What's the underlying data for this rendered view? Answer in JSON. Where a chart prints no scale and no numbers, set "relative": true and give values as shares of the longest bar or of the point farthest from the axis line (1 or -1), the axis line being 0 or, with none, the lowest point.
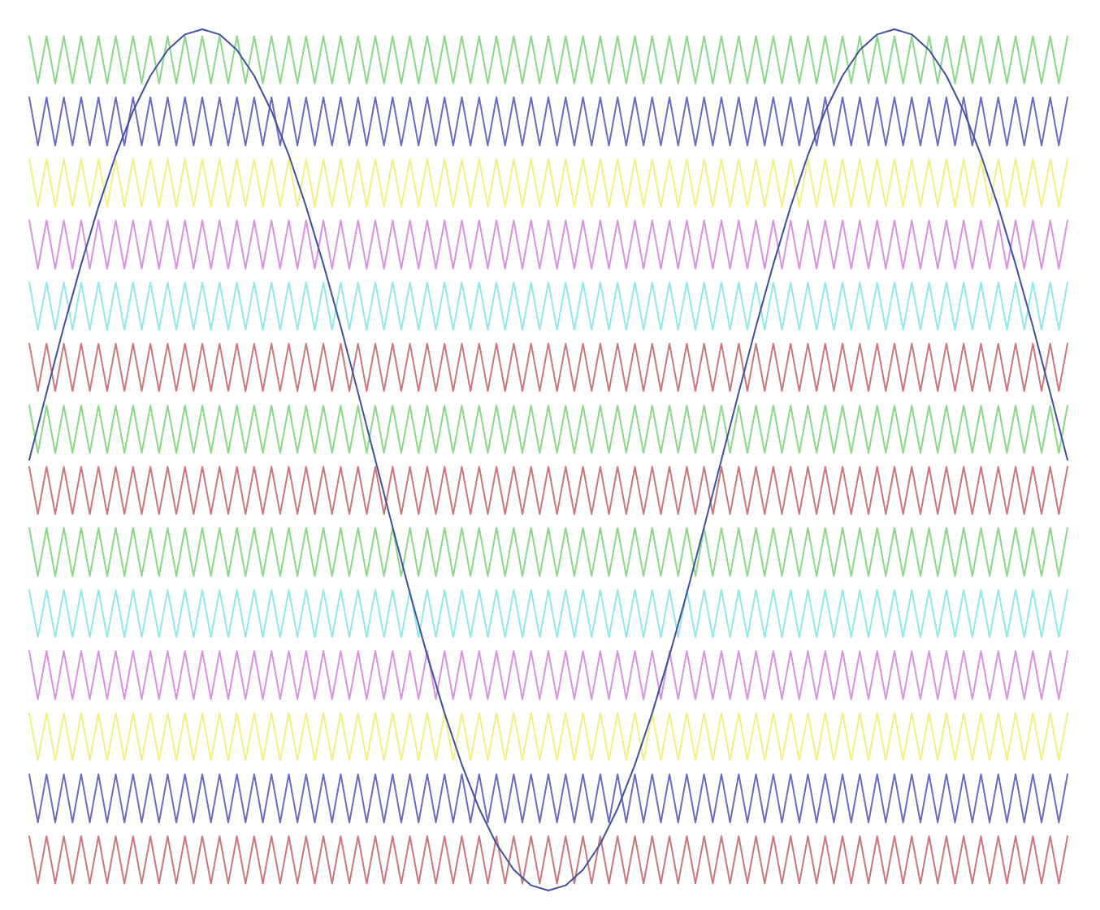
{
  "chart_data": {
    "type": "line",
    "relative": true,
    "tick_labels": false,
    "categories": [
      null,
      null,
      null,
      null,
      null,
      null,
      null,
      null,
      null,
      null,
      null,
      null,
      null,
      null,
      null,
      null,
      null,
      null,
      null,
      null,
      null,
      null,
      null,
      null,
      null,
      null,
      null,
      null,
      null,
      null,
      null,
      null,
      null,
      null,
      null,
      null,
      null,
      null,
      null,
      null,
      null,
      null,
      null,
      null,
      null,
      null,
      null,
      null,
      null,
      null,
      null,
      null,
      null,
      null,
      null,
      null,
      null,
      null,
      null,
      null,
      null,
      null,
      null,
      null,
      null,
      null,
      null,
      null,
      null,
      null,
      null,
      null,
      null,
      null,
      null,
      null,
      null,
      null,
      null,
      null,
      null,
      null,
      null,
      null,
      null,
      null,
      null,
      null,
      null,
      null,
      null,
      null,
      null,
      null,
      null,
      null,
      null,
      null,
      null,
      null,
      null,
      null,
      null,
      null,
      null,
      null,
      null,
      null,
      null,
      null,
      null,
      null,
      null,
      null,
      null,
      null,
      null,
      null,
      null,
      null,
      null
    ],
    "series": [
      {
        "color": "#88d888",
        "values": [
          0.992,
          0.937,
          0.992,
          0.937,
          0.992,
          0.937,
          0.992,
          0.937,
          0.992,
          0.937,
          0.992,
          0.937,
          0.992,
          0.937,
          0.992,
          0.937,
          0.992,
          0.937,
          0.992,
          0.937,
          0.992,
          0.937,
          0.992,
          0.937,
          0.992,
          0.937,
          0.992,
          0.937,
          0.992,
          0.937,
          0.992,
          0.937,
          0.992,
          0.937,
          0.992,
          0.937,
          0.992,
          0.937,
          0.992,
          0.937,
          0.992,
          0.937,
          0.992,
          0.937,
          0.992,
          0.937,
          0.992,
          0.937,
          0.992,
          0.937,
          0.992,
          0.937,
          0.992,
          0.937,
          0.992,
          0.937,
          0.992,
          0.937,
          0.992,
          0.937,
          0.992,
          0.937,
          0.992,
          0.937,
          0.992,
          0.937,
          0.992,
          0.937,
          0.992,
          0.937,
          0.992,
          0.937,
          0.992,
          0.937,
          0.992,
          0.937,
          0.992,
          0.937,
          0.992,
          0.937,
          0.992,
          0.937,
          0.992,
          0.937,
          0.992,
          0.937,
          0.992,
          0.937,
          0.992,
          0.937,
          0.992,
          0.937,
          0.992,
          0.937,
          0.992,
          0.937,
          0.992,
          0.937,
          0.992,
          0.937,
          0.992,
          0.937,
          0.992,
          0.937,
          0.992,
          0.937,
          0.992,
          0.937,
          0.992,
          0.937,
          0.992,
          0.937,
          0.992,
          0.937,
          0.992,
          0.937,
          0.992,
          0.937,
          0.992,
          0.937,
          0.992
        ]
      },
      {
        "color": "#6a6ac0",
        "values": [
          0.921,
          0.865,
          0.921,
          0.865,
          0.921,
          0.865,
          0.921,
          0.865,
          0.921,
          0.865,
          0.921,
          0.865,
          0.921,
          0.865,
          0.921,
          0.865,
          0.921,
          0.865,
          0.921,
          0.865,
          0.921,
          0.865,
          0.921,
          0.865,
          0.921,
          0.865,
          0.921,
          0.865,
          0.921,
          0.865,
          0.921,
          0.865,
          0.921,
          0.865,
          0.921,
          0.865,
          0.921,
          0.865,
          0.921,
          0.865,
          0.921,
          0.865,
          0.921,
          0.865,
          0.921,
          0.865,
          0.921,
          0.865,
          0.921,
          0.865,
          0.921,
          0.865,
          0.921,
          0.865,
          0.921,
          0.865,
          0.921,
          0.865,
          0.921,
          0.865,
          0.921,
          0.865,
          0.921,
          0.865,
          0.921,
          0.865,
          0.921,
          0.865,
          0.921,
          0.865,
          0.921,
          0.865,
          0.921,
          0.865,
          0.921,
          0.865,
          0.921,
          0.865,
          0.921,
          0.865,
          0.921,
          0.865,
          0.921,
          0.865,
          0.921,
          0.865,
          0.921,
          0.865,
          0.921,
          0.865,
          0.921,
          0.865,
          0.921,
          0.865,
          0.921,
          0.865,
          0.921,
          0.865,
          0.921,
          0.865,
          0.921,
          0.865,
          0.921,
          0.865,
          0.921,
          0.865,
          0.921,
          0.865,
          0.921,
          0.865,
          0.921,
          0.865,
          0.921,
          0.865,
          0.921,
          0.865,
          0.921,
          0.865,
          0.921,
          0.865,
          0.921
        ]
      },
      {
        "color": "#f0f080",
        "values": [
          0.849,
          0.794,
          0.849,
          0.794,
          0.849,
          0.794,
          0.849,
          0.794,
          0.849,
          0.794,
          0.849,
          0.794,
          0.849,
          0.794,
          0.849,
          0.794,
          0.849,
          0.794,
          0.849,
          0.794,
          0.849,
          0.794,
          0.849,
          0.794,
          0.849,
          0.794,
          0.849,
          0.794,
          0.849,
          0.794,
          0.849,
          0.794,
          0.849,
          0.794,
          0.849,
          0.794,
          0.849,
          0.794,
          0.849,
          0.794,
          0.849,
          0.794,
          0.849,
          0.794,
          0.849,
          0.794,
          0.849,
          0.794,
          0.849,
          0.794,
          0.849,
          0.794,
          0.849,
          0.794,
          0.849,
          0.794,
          0.849,
          0.794,
          0.849,
          0.794,
          0.849,
          0.794,
          0.849,
          0.794,
          0.849,
          0.794,
          0.849,
          0.794,
          0.849,
          0.794,
          0.849,
          0.794,
          0.849,
          0.794,
          0.849,
          0.794,
          0.849,
          0.794,
          0.849,
          0.794,
          0.849,
          0.794,
          0.849,
          0.794,
          0.849,
          0.794,
          0.849,
          0.794,
          0.849,
          0.794,
          0.849,
          0.794,
          0.849,
          0.794,
          0.849,
          0.794,
          0.849,
          0.794,
          0.849,
          0.794,
          0.849,
          0.794,
          0.849,
          0.794,
          0.849,
          0.794,
          0.849,
          0.794,
          0.849,
          0.794,
          0.849,
          0.794,
          0.849,
          0.794,
          0.849,
          0.794,
          0.849,
          0.794,
          0.849,
          0.794,
          0.849
        ]
      },
      {
        "color": "#d890e0",
        "values": [
          0.778,
          0.722,
          0.778,
          0.722,
          0.778,
          0.722,
          0.778,
          0.722,
          0.778,
          0.722,
          0.778,
          0.722,
          0.778,
          0.722,
          0.778,
          0.722,
          0.778,
          0.722,
          0.778,
          0.722,
          0.778,
          0.722,
          0.778,
          0.722,
          0.778,
          0.722,
          0.778,
          0.722,
          0.778,
          0.722,
          0.778,
          0.722,
          0.778,
          0.722,
          0.778,
          0.722,
          0.778,
          0.722,
          0.778,
          0.722,
          0.778,
          0.722,
          0.778,
          0.722,
          0.778,
          0.722,
          0.778,
          0.722,
          0.778,
          0.722,
          0.778,
          0.722,
          0.778,
          0.722,
          0.778,
          0.722,
          0.778,
          0.722,
          0.778,
          0.722,
          0.778,
          0.722,
          0.778,
          0.722,
          0.778,
          0.722,
          0.778,
          0.722,
          0.778,
          0.722,
          0.778,
          0.722,
          0.778,
          0.722,
          0.778,
          0.722,
          0.778,
          0.722,
          0.778,
          0.722,
          0.778,
          0.722,
          0.778,
          0.722,
          0.778,
          0.722,
          0.778,
          0.722,
          0.778,
          0.722,
          0.778,
          0.722,
          0.778,
          0.722,
          0.778,
          0.722,
          0.778,
          0.722,
          0.778,
          0.722,
          0.778,
          0.722,
          0.778,
          0.722,
          0.778,
          0.722,
          0.778,
          0.722,
          0.778,
          0.722,
          0.778,
          0.722,
          0.778,
          0.722,
          0.778,
          0.722,
          0.778,
          0.722,
          0.778,
          0.722,
          0.778
        ]
      },
      {
        "color": "#90e8e8",
        "values": [
          0.706,
          0.651,
          0.706,
          0.651,
          0.706,
          0.651,
          0.706,
          0.651,
          0.706,
          0.651,
          0.706,
          0.651,
          0.706,
          0.651,
          0.706,
          0.651,
          0.706,
          0.651,
          0.706,
          0.651,
          0.706,
          0.651,
          0.706,
          0.651,
          0.706,
          0.651,
          0.706,
          0.651,
          0.706,
          0.651,
          0.706,
          0.651,
          0.706,
          0.651,
          0.706,
          0.651,
          0.706,
          0.651,
          0.706,
          0.651,
          0.706,
          0.651,
          0.706,
          0.651,
          0.706,
          0.651,
          0.706,
          0.651,
          0.706,
          0.651,
          0.706,
          0.651,
          0.706,
          0.651,
          0.706,
          0.651,
          0.706,
          0.651,
          0.706,
          0.651,
          0.706,
          0.651,
          0.706,
          0.651,
          0.706,
          0.651,
          0.706,
          0.651,
          0.706,
          0.651,
          0.706,
          0.651,
          0.706,
          0.651,
          0.706,
          0.651,
          0.706,
          0.651,
          0.706,
          0.651,
          0.706,
          0.651,
          0.706,
          0.651,
          0.706,
          0.651,
          0.706,
          0.651,
          0.706,
          0.651,
          0.706,
          0.651,
          0.706,
          0.651,
          0.706,
          0.651,
          0.706,
          0.651,
          0.706,
          0.651,
          0.706,
          0.651,
          0.706,
          0.651,
          0.706,
          0.651,
          0.706,
          0.651,
          0.706,
          0.651,
          0.706,
          0.651,
          0.706,
          0.651,
          0.706,
          0.651,
          0.706,
          0.651,
          0.706,
          0.651,
          0.706
        ]
      },
      {
        "color": "#c87878",
        "values": [
          0.635,
          0.58,
          0.635,
          0.58,
          0.635,
          0.58,
          0.635,
          0.58,
          0.635,
          0.58,
          0.635,
          0.58,
          0.635,
          0.58,
          0.635,
          0.58,
          0.635,
          0.58,
          0.635,
          0.58,
          0.635,
          0.58,
          0.635,
          0.58,
          0.635,
          0.58,
          0.635,
          0.58,
          0.635,
          0.58,
          0.635,
          0.58,
          0.635,
          0.58,
          0.635,
          0.58,
          0.635,
          0.58,
          0.635,
          0.58,
          0.635,
          0.58,
          0.635,
          0.58,
          0.635,
          0.58,
          0.635,
          0.58,
          0.635,
          0.58,
          0.635,
          0.58,
          0.635,
          0.58,
          0.635,
          0.58,
          0.635,
          0.58,
          0.635,
          0.58,
          0.635,
          0.58,
          0.635,
          0.58,
          0.635,
          0.58,
          0.635,
          0.58,
          0.635,
          0.58,
          0.635,
          0.58,
          0.635,
          0.58,
          0.635,
          0.58,
          0.635,
          0.58,
          0.635,
          0.58,
          0.635,
          0.58,
          0.635,
          0.58,
          0.635,
          0.58,
          0.635,
          0.58,
          0.635,
          0.58,
          0.635,
          0.58,
          0.635,
          0.58,
          0.635,
          0.58,
          0.635,
          0.58,
          0.635,
          0.58,
          0.635,
          0.58,
          0.635,
          0.58,
          0.635,
          0.58,
          0.635,
          0.58,
          0.635,
          0.58,
          0.635,
          0.58,
          0.635,
          0.58,
          0.635,
          0.58,
          0.635,
          0.58,
          0.635,
          0.58,
          0.635
        ]
      },
      {
        "color": "#88d888",
        "values": [
          0.563,
          0.508,
          0.563,
          0.508,
          0.563,
          0.508,
          0.563,
          0.508,
          0.563,
          0.508,
          0.563,
          0.508,
          0.563,
          0.508,
          0.563,
          0.508,
          0.563,
          0.508,
          0.563,
          0.508,
          0.563,
          0.508,
          0.563,
          0.508,
          0.563,
          0.508,
          0.563,
          0.508,
          0.563,
          0.508,
          0.563,
          0.508,
          0.563,
          0.508,
          0.563,
          0.508,
          0.563,
          0.508,
          0.563,
          0.508,
          0.563,
          0.508,
          0.563,
          0.508,
          0.563,
          0.508,
          0.563,
          0.508,
          0.563,
          0.508,
          0.563,
          0.508,
          0.563,
          0.508,
          0.563,
          0.508,
          0.563,
          0.508,
          0.563,
          0.508,
          0.563,
          0.508,
          0.563,
          0.508,
          0.563,
          0.508,
          0.563,
          0.508,
          0.563,
          0.508,
          0.563,
          0.508,
          0.563,
          0.508,
          0.563,
          0.508,
          0.563,
          0.508,
          0.563,
          0.508,
          0.563,
          0.508,
          0.563,
          0.508,
          0.563,
          0.508,
          0.563,
          0.508,
          0.563,
          0.508,
          0.563,
          0.508,
          0.563,
          0.508,
          0.563,
          0.508,
          0.563,
          0.508,
          0.563,
          0.508,
          0.563,
          0.508,
          0.563,
          0.508,
          0.563,
          0.508,
          0.563,
          0.508,
          0.563,
          0.508,
          0.563,
          0.508,
          0.563,
          0.508,
          0.563,
          0.508,
          0.563,
          0.508,
          0.563,
          0.508,
          0.563
        ]
      },
      {
        "color": "#c87878",
        "values": [
          0.492,
          0.437,
          0.492,
          0.437,
          0.492,
          0.437,
          0.492,
          0.437,
          0.492,
          0.437,
          0.492,
          0.437,
          0.492,
          0.437,
          0.492,
          0.437,
          0.492,
          0.437,
          0.492,
          0.437,
          0.492,
          0.437,
          0.492,
          0.437,
          0.492,
          0.437,
          0.492,
          0.437,
          0.492,
          0.437,
          0.492,
          0.437,
          0.492,
          0.437,
          0.492,
          0.437,
          0.492,
          0.437,
          0.492,
          0.437,
          0.492,
          0.437,
          0.492,
          0.437,
          0.492,
          0.437,
          0.492,
          0.437,
          0.492,
          0.437,
          0.492,
          0.437,
          0.492,
          0.437,
          0.492,
          0.437,
          0.492,
          0.437,
          0.492,
          0.437,
          0.492,
          0.437,
          0.492,
          0.437,
          0.492,
          0.437,
          0.492,
          0.437,
          0.492,
          0.437,
          0.492,
          0.437,
          0.492,
          0.437,
          0.492,
          0.437,
          0.492,
          0.437,
          0.492,
          0.437,
          0.492,
          0.437,
          0.492,
          0.437,
          0.492,
          0.437,
          0.492,
          0.437,
          0.492,
          0.437,
          0.492,
          0.437,
          0.492,
          0.437,
          0.492,
          0.437,
          0.492,
          0.437,
          0.492,
          0.437,
          0.492,
          0.437,
          0.492,
          0.437,
          0.492,
          0.437,
          0.492,
          0.437,
          0.492,
          0.437,
          0.492,
          0.437,
          0.492,
          0.437,
          0.492,
          0.437,
          0.492,
          0.437,
          0.492,
          0.437,
          0.492
        ]
      },
      {
        "color": "#88d888",
        "values": [
          0.421,
          0.365,
          0.421,
          0.365,
          0.421,
          0.365,
          0.421,
          0.365,
          0.421,
          0.365,
          0.421,
          0.365,
          0.421,
          0.365,
          0.421,
          0.365,
          0.421,
          0.365,
          0.421,
          0.365,
          0.421,
          0.365,
          0.421,
          0.365,
          0.421,
          0.365,
          0.421,
          0.365,
          0.421,
          0.365,
          0.421,
          0.365,
          0.421,
          0.365,
          0.421,
          0.365,
          0.421,
          0.365,
          0.421,
          0.365,
          0.421,
          0.365,
          0.421,
          0.365,
          0.421,
          0.365,
          0.421,
          0.365,
          0.421,
          0.365,
          0.421,
          0.365,
          0.421,
          0.365,
          0.421,
          0.365,
          0.421,
          0.365,
          0.421,
          0.365,
          0.421,
          0.365,
          0.421,
          0.365,
          0.421,
          0.365,
          0.421,
          0.365,
          0.421,
          0.365,
          0.421,
          0.365,
          0.421,
          0.365,
          0.421,
          0.365,
          0.421,
          0.365,
          0.421,
          0.365,
          0.421,
          0.365,
          0.421,
          0.365,
          0.421,
          0.365,
          0.421,
          0.365,
          0.421,
          0.365,
          0.421,
          0.365,
          0.421,
          0.365,
          0.421,
          0.365,
          0.421,
          0.365,
          0.421,
          0.365,
          0.421,
          0.365,
          0.421,
          0.365,
          0.421,
          0.365,
          0.421,
          0.365,
          0.421,
          0.365,
          0.421,
          0.365,
          0.421,
          0.365,
          0.421,
          0.365,
          0.421,
          0.365,
          0.421,
          0.365,
          0.421
        ]
      },
      {
        "color": "#90e8e8",
        "values": [
          0.349,
          0.294,
          0.349,
          0.294,
          0.349,
          0.294,
          0.349,
          0.294,
          0.349,
          0.294,
          0.349,
          0.294,
          0.349,
          0.294,
          0.349,
          0.294,
          0.349,
          0.294,
          0.349,
          0.294,
          0.349,
          0.294,
          0.349,
          0.294,
          0.349,
          0.294,
          0.349,
          0.294,
          0.349,
          0.294,
          0.349,
          0.294,
          0.349,
          0.294,
          0.349,
          0.294,
          0.349,
          0.294,
          0.349,
          0.294,
          0.349,
          0.294,
          0.349,
          0.294,
          0.349,
          0.294,
          0.349,
          0.294,
          0.349,
          0.294,
          0.349,
          0.294,
          0.349,
          0.294,
          0.349,
          0.294,
          0.349,
          0.294,
          0.349,
          0.294,
          0.349,
          0.294,
          0.349,
          0.294,
          0.349,
          0.294,
          0.349,
          0.294,
          0.349,
          0.294,
          0.349,
          0.294,
          0.349,
          0.294,
          0.349,
          0.294,
          0.349,
          0.294,
          0.349,
          0.294,
          0.349,
          0.294,
          0.349,
          0.294,
          0.349,
          0.294,
          0.349,
          0.294,
          0.349,
          0.294,
          0.349,
          0.294,
          0.349,
          0.294,
          0.349,
          0.294,
          0.349,
          0.294,
          0.349,
          0.294,
          0.349,
          0.294,
          0.349,
          0.294,
          0.349,
          0.294,
          0.349,
          0.294,
          0.349,
          0.294,
          0.349,
          0.294,
          0.349,
          0.294,
          0.349,
          0.294,
          0.349,
          0.294,
          0.349,
          0.294,
          0.349
        ]
      },
      {
        "color": "#d890e0",
        "values": [
          0.278,
          0.222,
          0.278,
          0.222,
          0.278,
          0.222,
          0.278,
          0.222,
          0.278,
          0.222,
          0.278,
          0.222,
          0.278,
          0.222,
          0.278,
          0.222,
          0.278,
          0.222,
          0.278,
          0.222,
          0.278,
          0.222,
          0.278,
          0.222,
          0.278,
          0.222,
          0.278,
          0.222,
          0.278,
          0.222,
          0.278,
          0.222,
          0.278,
          0.222,
          0.278,
          0.222,
          0.278,
          0.222,
          0.278,
          0.222,
          0.278,
          0.222,
          0.278,
          0.222,
          0.278,
          0.222,
          0.278,
          0.222,
          0.278,
          0.222,
          0.278,
          0.222,
          0.278,
          0.222,
          0.278,
          0.222,
          0.278,
          0.222,
          0.278,
          0.222,
          0.278,
          0.222,
          0.278,
          0.222,
          0.278,
          0.222,
          0.278,
          0.222,
          0.278,
          0.222,
          0.278,
          0.222,
          0.278,
          0.222,
          0.278,
          0.222,
          0.278,
          0.222,
          0.278,
          0.222,
          0.278,
          0.222,
          0.278,
          0.222,
          0.278,
          0.222,
          0.278,
          0.222,
          0.278,
          0.222,
          0.278,
          0.222,
          0.278,
          0.222,
          0.278,
          0.222,
          0.278,
          0.222,
          0.278,
          0.222,
          0.278,
          0.222,
          0.278,
          0.222,
          0.278,
          0.222,
          0.278,
          0.222,
          0.278,
          0.222,
          0.278,
          0.222,
          0.278,
          0.222,
          0.278,
          0.222,
          0.278,
          0.222,
          0.278,
          0.222,
          0.278
        ]
      },
      {
        "color": "#f0f080",
        "values": [
          0.206,
          0.151,
          0.206,
          0.151,
          0.206,
          0.151,
          0.206,
          0.151,
          0.206,
          0.151,
          0.206,
          0.151,
          0.206,
          0.151,
          0.206,
          0.151,
          0.206,
          0.151,
          0.206,
          0.151,
          0.206,
          0.151,
          0.206,
          0.151,
          0.206,
          0.151,
          0.206,
          0.151,
          0.206,
          0.151,
          0.206,
          0.151,
          0.206,
          0.151,
          0.206,
          0.151,
          0.206,
          0.151,
          0.206,
          0.151,
          0.206,
          0.151,
          0.206,
          0.151,
          0.206,
          0.151,
          0.206,
          0.151,
          0.206,
          0.151,
          0.206,
          0.151,
          0.206,
          0.151,
          0.206,
          0.151,
          0.206,
          0.151,
          0.206,
          0.151,
          0.206,
          0.151,
          0.206,
          0.151,
          0.206,
          0.151,
          0.206,
          0.151,
          0.206,
          0.151,
          0.206,
          0.151,
          0.206,
          0.151,
          0.206,
          0.151,
          0.206,
          0.151,
          0.206,
          0.151,
          0.206,
          0.151,
          0.206,
          0.151,
          0.206,
          0.151,
          0.206,
          0.151,
          0.206,
          0.151,
          0.206,
          0.151,
          0.206,
          0.151,
          0.206,
          0.151,
          0.206,
          0.151,
          0.206,
          0.151,
          0.206,
          0.151,
          0.206,
          0.151,
          0.206,
          0.151,
          0.206,
          0.151,
          0.206,
          0.151,
          0.206,
          0.151,
          0.206,
          0.151,
          0.206,
          0.151,
          0.206,
          0.151,
          0.206,
          0.151,
          0.206
        ]
      },
      {
        "color": "#6a6ac0",
        "values": [
          0.135,
          0.079,
          0.135,
          0.079,
          0.135,
          0.079,
          0.135,
          0.079,
          0.135,
          0.079,
          0.135,
          0.079,
          0.135,
          0.079,
          0.135,
          0.079,
          0.135,
          0.079,
          0.135,
          0.079,
          0.135,
          0.079,
          0.135,
          0.079,
          0.135,
          0.079,
          0.135,
          0.079,
          0.135,
          0.079,
          0.135,
          0.079,
          0.135,
          0.079,
          0.135,
          0.079,
          0.135,
          0.079,
          0.135,
          0.079,
          0.135,
          0.079,
          0.135,
          0.079,
          0.135,
          0.079,
          0.135,
          0.079,
          0.135,
          0.079,
          0.135,
          0.079,
          0.135,
          0.079,
          0.135,
          0.079,
          0.135,
          0.079,
          0.135,
          0.079,
          0.135,
          0.079,
          0.135,
          0.079,
          0.135,
          0.079,
          0.135,
          0.079,
          0.135,
          0.079,
          0.135,
          0.079,
          0.135,
          0.079,
          0.135,
          0.079,
          0.135,
          0.079,
          0.135,
          0.079,
          0.135,
          0.079,
          0.135,
          0.079,
          0.135,
          0.079,
          0.135,
          0.079,
          0.135,
          0.079,
          0.135,
          0.079,
          0.135,
          0.079,
          0.135,
          0.079,
          0.135,
          0.079,
          0.135,
          0.079,
          0.135,
          0.079,
          0.135,
          0.079,
          0.135,
          0.079,
          0.135,
          0.079,
          0.135,
          0.079,
          0.135,
          0.079,
          0.135,
          0.079,
          0.135,
          0.079,
          0.135,
          0.079,
          0.135,
          0.079,
          0.135
        ]
      },
      {
        "color": "#c87878",
        "values": [
          0.063,
          0.008,
          0.063,
          0.008,
          0.063,
          0.008,
          0.063,
          0.008,
          0.063,
          0.008,
          0.063,
          0.008,
          0.063,
          0.008,
          0.063,
          0.008,
          0.063,
          0.008,
          0.063,
          0.008,
          0.063,
          0.008,
          0.063,
          0.008,
          0.063,
          0.008,
          0.063,
          0.008,
          0.063,
          0.008,
          0.063,
          0.008,
          0.063,
          0.008,
          0.063,
          0.008,
          0.063,
          0.008,
          0.063,
          0.008,
          0.063,
          0.008,
          0.063,
          0.008,
          0.063,
          0.008,
          0.063,
          0.008,
          0.063,
          0.008,
          0.063,
          0.008,
          0.063,
          0.008,
          0.063,
          0.008,
          0.063,
          0.008,
          0.063,
          0.008,
          0.063,
          0.008,
          0.063,
          0.008,
          0.063,
          0.008,
          0.063,
          0.008,
          0.063,
          0.008,
          0.063,
          0.008,
          0.063,
          0.008,
          0.063,
          0.008,
          0.063,
          0.008,
          0.063,
          0.008,
          0.063,
          0.008,
          0.063,
          0.008,
          0.063,
          0.008,
          0.063,
          0.008,
          0.063,
          0.008,
          0.063,
          0.008,
          0.063,
          0.008,
          0.063,
          0.008,
          0.063,
          0.008,
          0.063,
          0.008,
          0.063,
          0.008,
          0.063,
          0.008,
          0.063,
          0.008,
          0.063,
          0.008,
          0.063,
          0.008,
          0.063,
          0.008,
          0.063,
          0.008,
          0.063,
          0.008,
          0.063,
          0.008,
          0.063,
          0.008,
          0.063
        ]
      },
      {
        "color": "#4050a0",
        "values": [
          0.5,
          null,
          0.578,
          null,
          0.655,
          null,
          0.727,
          null,
          0.794,
          null,
          0.854,
          null,
          0.905,
          null,
          0.946,
          null,
          0.976,
          null,
          0.994,
          null,
          1,
          null,
          0.994,
          null,
          0.976,
          null,
          0.946,
          null,
          0.905,
          null,
          0.854,
          null,
          0.794,
          null,
          0.727,
          null,
          0.655,
          null,
          0.578,
          null,
          0.5,
          null,
          0.422,
          null,
          0.345,
          null,
          0.273,
          null,
          0.206,
          null,
          0.146,
          null,
          0.095,
          null,
          0.054,
          null,
          0.024,
          null,
          0.006,
          null,
          0,
          null,
          0.006,
          null,
          0.024,
          null,
          0.054,
          null,
          0.095,
          null,
          0.146,
          null,
          0.206,
          null,
          0.273,
          null,
          0.345,
          null,
          0.422,
          null,
          0.5,
          null,
          0.578,
          null,
          0.655,
          null,
          0.727,
          null,
          0.794,
          null,
          0.854,
          null,
          0.905,
          null,
          0.946,
          null,
          0.976,
          null,
          0.994,
          null,
          1,
          null,
          0.994,
          null,
          0.976,
          null,
          0.946,
          null,
          0.905,
          null,
          0.854,
          null,
          0.794,
          null,
          0.727,
          null,
          0.655,
          null,
          0.578,
          null,
          0.5
        ]
      }
    ]
  }
}
